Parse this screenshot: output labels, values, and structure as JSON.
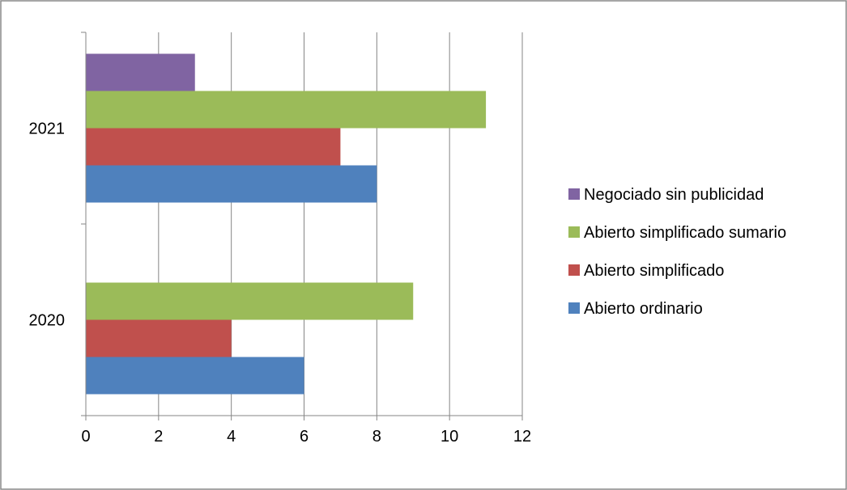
{
  "chart_data": {
    "type": "bar",
    "orientation": "horizontal",
    "title": "",
    "xlabel": "",
    "ylabel": "",
    "categories": [
      "2020",
      "2021"
    ],
    "series": [
      {
        "name": "Abierto ordinario",
        "color": "#4F81BD",
        "values": [
          6,
          8
        ]
      },
      {
        "name": "Abierto simplificado",
        "color": "#C0504D",
        "values": [
          4,
          7
        ]
      },
      {
        "name": "Abierto simplificado sumario",
        "color": "#9BBB59",
        "values": [
          9,
          11
        ]
      },
      {
        "name": "Negociado sin publicidad",
        "color": "#8064A2",
        "values": [
          0,
          3
        ]
      }
    ],
    "xlim": [
      0,
      12
    ],
    "x_ticks": [
      0,
      2,
      4,
      6,
      8,
      10,
      12
    ],
    "grid": "vertical",
    "legend_position": "right",
    "legend_order": [
      "Negociado sin publicidad",
      "Abierto simplificado sumario",
      "Abierto simplificado",
      "Abierto ordinario"
    ]
  }
}
